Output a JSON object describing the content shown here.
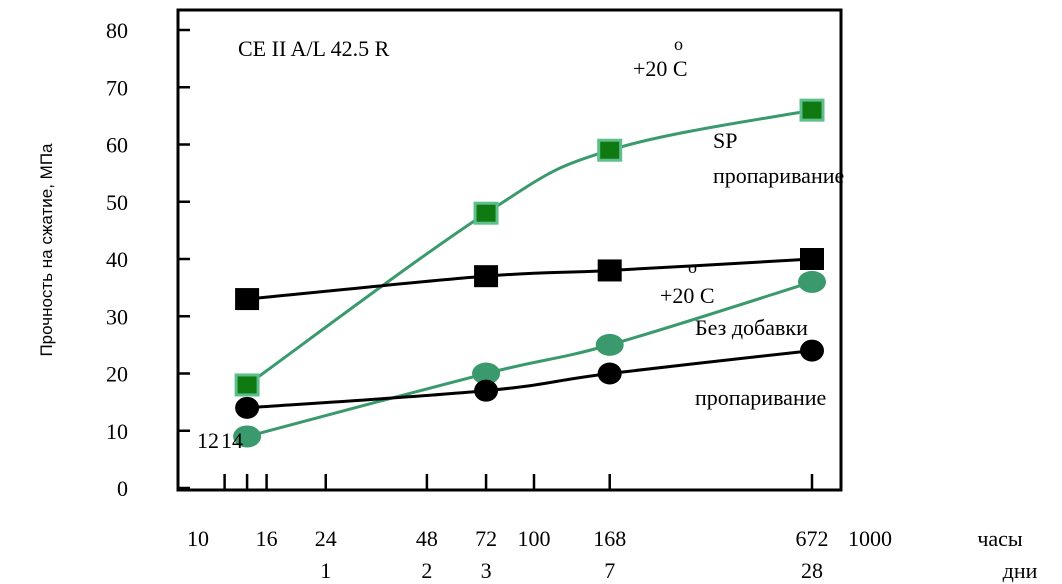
{
  "chart_data": {
    "type": "line",
    "title": "CE II A/L 42.5 R",
    "ylabel": "Прочность на сжатие, МПа",
    "ylim": [
      0,
      80
    ],
    "yticks": [
      0,
      10,
      20,
      30,
      40,
      50,
      60,
      70,
      80
    ],
    "x_scale": "log",
    "x_hours_ticks": [
      "10",
      "16",
      "24",
      "48",
      "72",
      "100",
      "168",
      "672",
      "1000"
    ],
    "x_days_ticks": [
      "1",
      "2",
      "3",
      "7",
      "28"
    ],
    "x_unit_hours": "часы",
    "x_unit_days": "дни",
    "x_extra_labels": [
      "12",
      "14"
    ],
    "x_minor_ticks": [
      12,
      14
    ],
    "series": [
      {
        "name": "SP +20 C",
        "marker": "square-green",
        "color": "#3a9a6e",
        "x": [
          14,
          72,
          168,
          672
        ],
        "y": [
          18,
          48,
          59,
          66
        ]
      },
      {
        "name": "SP пропаривание",
        "marker": "square-black",
        "color": "#000000",
        "x": [
          14,
          72,
          168,
          672
        ],
        "y": [
          33,
          37,
          38,
          40
        ]
      },
      {
        "name": "Без добавки +20 C",
        "marker": "circle-green",
        "color": "#3a9a6e",
        "x": [
          14,
          72,
          168,
          672
        ],
        "y": [
          9,
          20,
          25,
          36
        ]
      },
      {
        "name": "Без добавки пропаривание",
        "marker": "circle-black",
        "color": "#000000",
        "x": [
          14,
          72,
          168,
          672
        ],
        "y": [
          14,
          17,
          20,
          24
        ]
      }
    ],
    "annotations": {
      "temp_top": "+20 C",
      "sp": "SP",
      "steam_top": "пропаривание",
      "temp_bottom": "+20 C",
      "no_additive": "Без добавки",
      "steam_bottom": "пропаривание",
      "degree": "o"
    }
  }
}
